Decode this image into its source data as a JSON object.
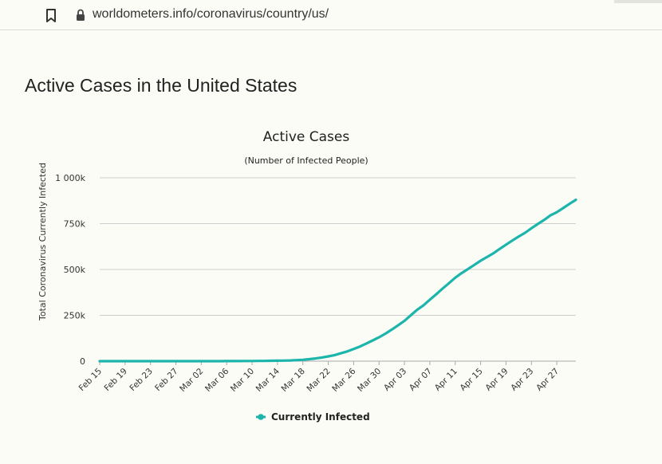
{
  "browser": {
    "url": "worldometers.info/coronavirus/country/us/"
  },
  "page": {
    "heading": "Active Cases in the United States"
  },
  "colors": {
    "series": "#1cb5ac",
    "grid": "#cfcfcf",
    "text": "#222222",
    "background": "#fbfcf6"
  },
  "chart_data": {
    "type": "line",
    "title": "Active Cases",
    "subtitle": "(Number of Infected People)",
    "xlabel": "",
    "ylabel": "Total Coronavirus Currently Infected",
    "ylim": [
      0,
      1000000
    ],
    "yticks": [
      0,
      250000,
      500000,
      750000,
      1000000
    ],
    "ytick_labels": [
      "0",
      "250k",
      "500k",
      "750k",
      "1 000k"
    ],
    "xtick_labels": [
      "Feb 15",
      "Feb 19",
      "Feb 23",
      "Feb 27",
      "Mar 02",
      "Mar 06",
      "Mar 10",
      "Mar 14",
      "Mar 18",
      "Mar 22",
      "Mar 26",
      "Mar 30",
      "Apr 03",
      "Apr 07",
      "Apr 11",
      "Apr 15",
      "Apr 19",
      "Apr 23",
      "Apr 27"
    ],
    "grid": true,
    "legend_position": "bottom",
    "series": [
      {
        "name": "Currently Infected",
        "x": [
          "Feb 15",
          "Feb 16",
          "Feb 17",
          "Feb 18",
          "Feb 19",
          "Feb 20",
          "Feb 21",
          "Feb 22",
          "Feb 23",
          "Feb 24",
          "Feb 25",
          "Feb 26",
          "Feb 27",
          "Feb 28",
          "Feb 29",
          "Mar 01",
          "Mar 02",
          "Mar 03",
          "Mar 04",
          "Mar 05",
          "Mar 06",
          "Mar 07",
          "Mar 08",
          "Mar 09",
          "Mar 10",
          "Mar 11",
          "Mar 12",
          "Mar 13",
          "Mar 14",
          "Mar 15",
          "Mar 16",
          "Mar 17",
          "Mar 18",
          "Mar 19",
          "Mar 20",
          "Mar 21",
          "Mar 22",
          "Mar 23",
          "Mar 24",
          "Mar 25",
          "Mar 26",
          "Mar 27",
          "Mar 28",
          "Mar 29",
          "Mar 30",
          "Mar 31",
          "Apr 01",
          "Apr 02",
          "Apr 03",
          "Apr 04",
          "Apr 05",
          "Apr 06",
          "Apr 07",
          "Apr 08",
          "Apr 09",
          "Apr 10",
          "Apr 11",
          "Apr 12",
          "Apr 13",
          "Apr 14",
          "Apr 15",
          "Apr 16",
          "Apr 17",
          "Apr 18",
          "Apr 19",
          "Apr 20",
          "Apr 21",
          "Apr 22",
          "Apr 23",
          "Apr 24",
          "Apr 25",
          "Apr 26",
          "Apr 27",
          "Apr 28",
          "Apr 29",
          "Apr 30"
        ],
        "values": [
          12,
          12,
          12,
          12,
          12,
          12,
          12,
          12,
          12,
          12,
          12,
          12,
          12,
          14,
          20,
          30,
          45,
          75,
          110,
          180,
          250,
          400,
          500,
          700,
          900,
          1200,
          1500,
          2000,
          2600,
          3200,
          4000,
          5500,
          7500,
          11000,
          15000,
          20000,
          26000,
          33000,
          43000,
          53000,
          66000,
          80000,
          96000,
          113000,
          130000,
          150000,
          172000,
          195000,
          220000,
          250000,
          280000,
          305000,
          335000,
          365000,
          395000,
          425000,
          455000,
          480000,
          502000,
          525000,
          548000,
          568000,
          588000,
          612000,
          635000,
          658000,
          680000,
          700000,
          725000,
          748000,
          770000,
          795000,
          812000,
          835000,
          858000,
          880000
        ]
      }
    ]
  }
}
